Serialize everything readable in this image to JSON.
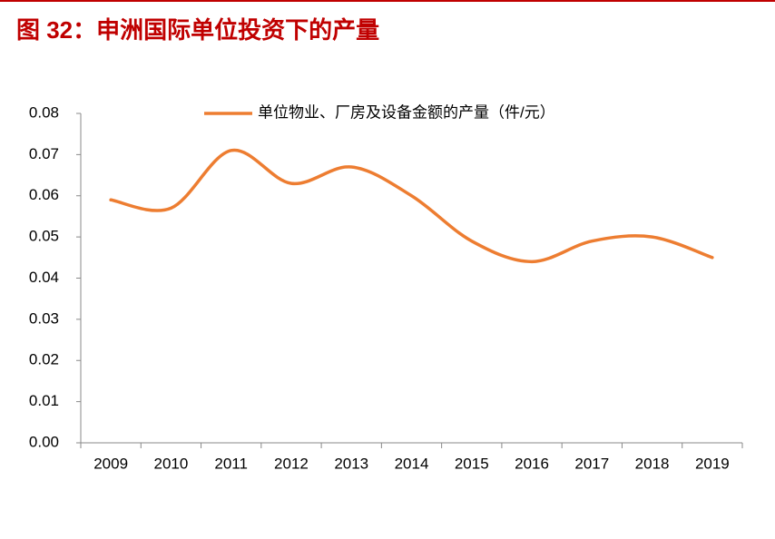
{
  "chart_data": {
    "type": "line",
    "title": "图 32：申洲国际单位投资下的产量",
    "categories": [
      "2009",
      "2010",
      "2011",
      "2012",
      "2013",
      "2014",
      "2015",
      "2016",
      "2017",
      "2018",
      "2019"
    ],
    "series": [
      {
        "name": "单位物业、厂房及设备金额的产量（件/元）",
        "color": "#ed7d31",
        "values": [
          0.059,
          0.057,
          0.071,
          0.063,
          0.067,
          0.06,
          0.049,
          0.044,
          0.049,
          0.05,
          0.045
        ]
      }
    ],
    "ylim": [
      0,
      0.08
    ],
    "yticks": [
      {
        "value": 0,
        "label": "0.00"
      },
      0.01,
      0.02,
      0.03,
      0.04,
      0.05,
      0.06,
      0.07,
      0.08
    ],
    "legend": "top",
    "smooth": true
  }
}
